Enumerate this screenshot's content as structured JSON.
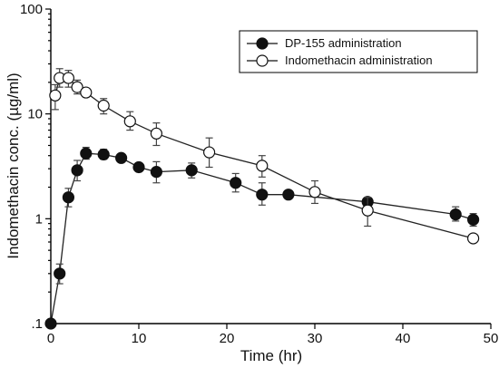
{
  "chart_data": {
    "type": "line",
    "xlabel": "Time (hr)",
    "ylabel": "Indomethacin conc. (µg/ml)",
    "xlim": [
      0,
      50
    ],
    "ylim": [
      0.1,
      100
    ],
    "yscale": "log",
    "x_ticks": [
      "0",
      "10",
      "20",
      "30",
      "40",
      "50"
    ],
    "y_ticks": [
      {
        "value": 0.1,
        "label": ".1"
      },
      {
        "value": 1,
        "label": "1"
      },
      {
        "value": 10,
        "label": "10"
      },
      {
        "value": 100,
        "label": "100"
      }
    ],
    "legend_position": "top-right",
    "grid": false,
    "series": [
      {
        "name": "DP-155 administration",
        "marker": "filled-circle",
        "color": "#111111",
        "points": [
          {
            "x": 0,
            "y": 0.1,
            "lo": 0.1,
            "hi": 0.1
          },
          {
            "x": 1,
            "y": 0.3,
            "lo": 0.24,
            "hi": 0.37
          },
          {
            "x": 2,
            "y": 1.6,
            "lo": 1.3,
            "hi": 1.95
          },
          {
            "x": 3,
            "y": 2.9,
            "lo": 2.3,
            "hi": 3.6
          },
          {
            "x": 4,
            "y": 4.2,
            "lo": 3.7,
            "hi": 4.8
          },
          {
            "x": 6,
            "y": 4.1,
            "lo": 3.7,
            "hi": 4.6
          },
          {
            "x": 8,
            "y": 3.8,
            "lo": 3.5,
            "hi": 4.1
          },
          {
            "x": 10,
            "y": 3.1,
            "lo": 2.9,
            "hi": 3.3
          },
          {
            "x": 12,
            "y": 2.8,
            "lo": 2.2,
            "hi": 3.5
          },
          {
            "x": 16,
            "y": 2.9,
            "lo": 2.45,
            "hi": 3.4
          },
          {
            "x": 21,
            "y": 2.2,
            "lo": 1.8,
            "hi": 2.7
          },
          {
            "x": 24,
            "y": 1.7,
            "lo": 1.35,
            "hi": 2.2
          },
          {
            "x": 27,
            "y": 1.7,
            "lo": 1.7,
            "hi": 1.7
          },
          {
            "x": 36,
            "y": 1.45,
            "lo": 1.35,
            "hi": 1.55
          },
          {
            "x": 46,
            "y": 1.1,
            "lo": 0.95,
            "hi": 1.3
          },
          {
            "x": 48,
            "y": 0.98,
            "lo": 0.85,
            "hi": 1.12
          }
        ]
      },
      {
        "name": "Indomethacin administration",
        "marker": "open-circle",
        "color": "#111111",
        "points": [
          {
            "x": 0.5,
            "y": 15,
            "lo": 11,
            "hi": 19
          },
          {
            "x": 1,
            "y": 22,
            "lo": 18,
            "hi": 27
          },
          {
            "x": 2,
            "y": 22,
            "lo": 18,
            "hi": 26
          },
          {
            "x": 3,
            "y": 18,
            "lo": 15.5,
            "hi": 21
          },
          {
            "x": 4,
            "y": 16,
            "lo": 14.5,
            "hi": 17.5
          },
          {
            "x": 6,
            "y": 12,
            "lo": 10,
            "hi": 14
          },
          {
            "x": 9,
            "y": 8.5,
            "lo": 7,
            "hi": 10.5
          },
          {
            "x": 12,
            "y": 6.5,
            "lo": 5,
            "hi": 8.2
          },
          {
            "x": 18,
            "y": 4.3,
            "lo": 3.1,
            "hi": 5.9
          },
          {
            "x": 24,
            "y": 3.2,
            "lo": 2.5,
            "hi": 4.0
          },
          {
            "x": 30,
            "y": 1.8,
            "lo": 1.4,
            "hi": 2.3
          },
          {
            "x": 36,
            "y": 1.2,
            "lo": 0.85,
            "hi": 1.6
          },
          {
            "x": 48,
            "y": 0.65,
            "lo": 0.65,
            "hi": 0.65
          }
        ]
      }
    ]
  }
}
